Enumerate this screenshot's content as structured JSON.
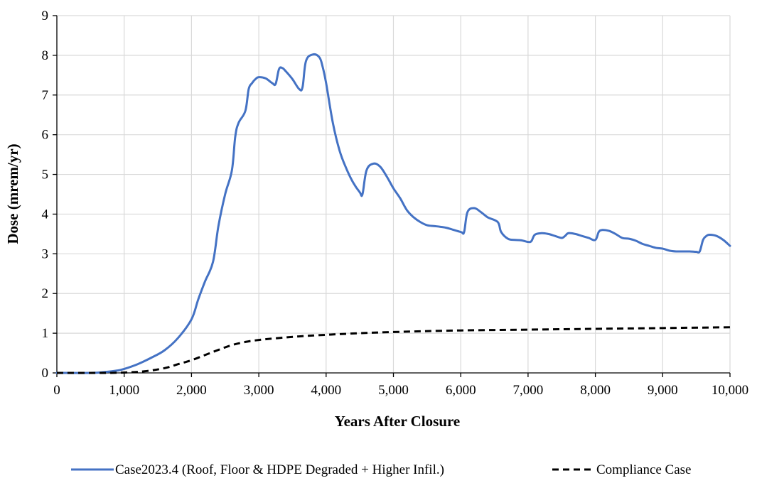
{
  "chart_data": {
    "type": "line",
    "title": "",
    "xlabel": "Years After Closure",
    "ylabel": "Dose (mrem/yr)",
    "xlim": [
      0,
      10000
    ],
    "ylim": [
      0,
      9
    ],
    "x_ticks": [
      0,
      1000,
      2000,
      3000,
      4000,
      5000,
      6000,
      7000,
      8000,
      9000,
      10000
    ],
    "x_tick_labels": [
      "0",
      "1,000",
      "2,000",
      "3,000",
      "4,000",
      "5,000",
      "6,000",
      "7,000",
      "8,000",
      "9,000",
      "10,000"
    ],
    "y_ticks": [
      0,
      1,
      2,
      3,
      4,
      5,
      6,
      7,
      8,
      9
    ],
    "y_tick_labels": [
      "0",
      "1",
      "2",
      "3",
      "4",
      "5",
      "6",
      "7",
      "8",
      "9"
    ],
    "grid": true,
    "legend_position": "bottom",
    "series": [
      {
        "name": "Case2023.4 (Roof, Floor & HDPE Degraded + Higher Infil.)",
        "color": "#4472C4",
        "style": "solid",
        "x": [
          0,
          500,
          700,
          900,
          1000,
          1200,
          1400,
          1600,
          1800,
          2000,
          2100,
          2200,
          2320,
          2400,
          2500,
          2600,
          2650,
          2700,
          2800,
          2850,
          2900,
          2950,
          3000,
          3100,
          3200,
          3250,
          3300,
          3350,
          3400,
          3500,
          3600,
          3650,
          3700,
          3800,
          3900,
          3950,
          4000,
          4100,
          4200,
          4300,
          4400,
          4500,
          4540,
          4600,
          4700,
          4800,
          4900,
          5000,
          5100,
          5200,
          5300,
          5400,
          5500,
          5600,
          5700,
          5800,
          6000,
          6050,
          6100,
          6200,
          6300,
          6400,
          6550,
          6600,
          6700,
          6800,
          6900,
          7000,
          7050,
          7100,
          7200,
          7300,
          7400,
          7500,
          7550,
          7600,
          7700,
          7800,
          7900,
          8000,
          8050,
          8100,
          8200,
          8300,
          8400,
          8500,
          8600,
          8700,
          8800,
          8900,
          9000,
          9100,
          9200,
          9300,
          9400,
          9500,
          9550,
          9600,
          9650,
          9700,
          9800,
          9900,
          10000
        ],
        "y": [
          0,
          0,
          0.02,
          0.06,
          0.1,
          0.22,
          0.38,
          0.57,
          0.88,
          1.35,
          1.85,
          2.3,
          2.8,
          3.7,
          4.5,
          5.1,
          5.95,
          6.3,
          6.6,
          7.15,
          7.3,
          7.4,
          7.45,
          7.42,
          7.3,
          7.28,
          7.65,
          7.68,
          7.6,
          7.4,
          7.15,
          7.2,
          7.85,
          8.02,
          7.95,
          7.7,
          7.3,
          6.3,
          5.6,
          5.15,
          4.8,
          4.55,
          4.5,
          5.1,
          5.27,
          5.2,
          4.95,
          4.65,
          4.4,
          4.1,
          3.92,
          3.8,
          3.72,
          3.7,
          3.68,
          3.65,
          3.55,
          3.55,
          4.05,
          4.15,
          4.05,
          3.92,
          3.8,
          3.55,
          3.38,
          3.35,
          3.34,
          3.3,
          3.32,
          3.48,
          3.52,
          3.5,
          3.45,
          3.4,
          3.45,
          3.52,
          3.5,
          3.45,
          3.4,
          3.35,
          3.55,
          3.6,
          3.58,
          3.5,
          3.4,
          3.38,
          3.33,
          3.25,
          3.2,
          3.15,
          3.13,
          3.08,
          3.06,
          3.06,
          3.06,
          3.05,
          3.06,
          3.35,
          3.45,
          3.48,
          3.45,
          3.35,
          3.2
        ],
        "values_note": "",
        "label": ""
      },
      {
        "name": "Compliance Case",
        "color": "#000000",
        "style": "dashed",
        "x": [
          0,
          700,
          1000,
          1300,
          1600,
          1800,
          2000,
          2200,
          2400,
          2600,
          2800,
          3000,
          3300,
          3600,
          4000,
          4500,
          5000,
          6000,
          7000,
          8000,
          9000,
          10000
        ],
        "y": [
          0,
          0,
          0.01,
          0.04,
          0.12,
          0.22,
          0.32,
          0.45,
          0.58,
          0.7,
          0.78,
          0.83,
          0.88,
          0.92,
          0.96,
          1.0,
          1.03,
          1.07,
          1.09,
          1.11,
          1.13,
          1.15
        ]
      }
    ]
  }
}
